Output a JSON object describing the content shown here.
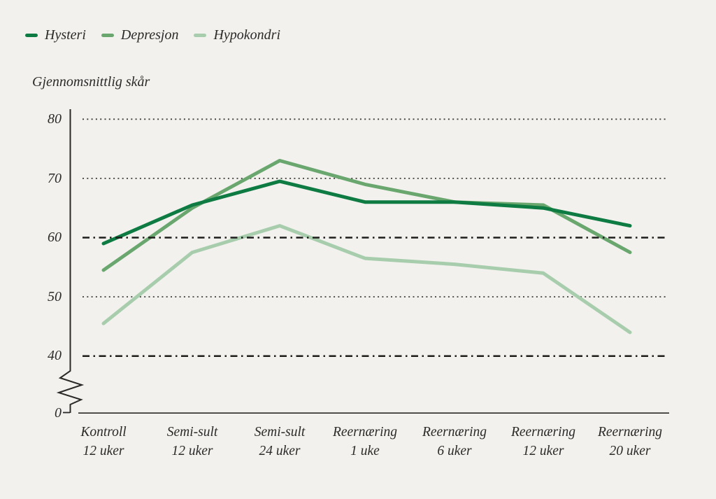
{
  "chart_data": {
    "type": "line",
    "title": "",
    "ylabel": "Gjennomsnittlig skår",
    "xlabel": "",
    "legend_position": "top-left",
    "grid": "horizontal-dotted",
    "axis_break_above_zero": true,
    "ylim_shown": [
      40,
      80
    ],
    "yticks": [
      "80",
      "70",
      "60",
      "50",
      "40",
      "0"
    ],
    "gridlines": [
      {
        "value": 80,
        "style": "dotted"
      },
      {
        "value": 70,
        "style": "dotted"
      },
      {
        "value": 60,
        "style": "dashdot"
      },
      {
        "value": 50,
        "style": "dotted"
      },
      {
        "value": 40,
        "style": "dashdot"
      }
    ],
    "categories": [
      {
        "line1": "Kontroll",
        "line2": "12 uker"
      },
      {
        "line1": "Semi-sult",
        "line2": "12 uker"
      },
      {
        "line1": "Semi-sult",
        "line2": "24 uker"
      },
      {
        "line1": "Reernæring",
        "line2": "1 uke"
      },
      {
        "line1": "Reernæring",
        "line2": "6 uker"
      },
      {
        "line1": "Reernæring",
        "line2": "12 uker"
      },
      {
        "line1": "Reernæring",
        "line2": "20 uker"
      }
    ],
    "series": [
      {
        "name": "Hysteri",
        "color": "#0e7b42",
        "values": [
          59,
          65.5,
          69.5,
          66,
          66,
          65,
          62
        ]
      },
      {
        "name": "Depresjon",
        "color": "#69a76f",
        "values": [
          54.5,
          65,
          73,
          69,
          66,
          65.5,
          57.5
        ]
      },
      {
        "name": "Hypokondri",
        "color": "#a7cdac",
        "values": [
          45.5,
          57.5,
          62,
          56.5,
          55.5,
          54,
          44
        ]
      }
    ],
    "colors": {
      "background": "#f2f1ee",
      "text": "#2b2a28",
      "axis": "#2a2927",
      "gridline_dotted": "#3d3c3a",
      "gridline_dashdot": "#1d1d1b"
    }
  }
}
